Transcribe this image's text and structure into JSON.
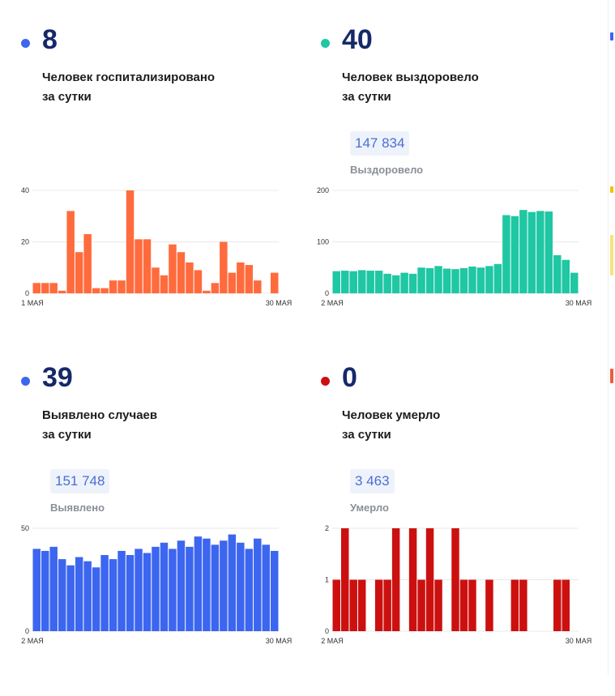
{
  "colors": {
    "orange": "#ff6b3d",
    "teal": "#1fc7a3",
    "blue": "#3c66f0",
    "red": "#cc1010",
    "blue_dot": "#3c66f0",
    "teal_dot": "#1fc7a3",
    "red_dot": "#cc1010"
  },
  "cards": {
    "hosp": {
      "value": "8",
      "label_line1": "Человек госпитализировано",
      "label_line2": "за сутки"
    },
    "recovered": {
      "value": "40",
      "label_line1": "Человек выздоровело",
      "label_line2": "за сутки",
      "total": "147 834",
      "total_label": "Выздоровело"
    },
    "cases": {
      "value": "39",
      "label_line1": "Выявлено случаев",
      "label_line2": "за сутки",
      "total": "151 748",
      "total_label": "Выявлено"
    },
    "deaths": {
      "value": "0",
      "label_line1": "Человек умерло",
      "label_line2": "за сутки",
      "total": "3 463",
      "total_label": "Умерло"
    }
  },
  "chart_data": [
    {
      "type": "bar",
      "id": "hosp",
      "x_start_label": "1 МАЯ",
      "x_end_label": "30 МАЯ",
      "yticks": [
        0,
        20,
        40
      ],
      "ylim": [
        0,
        40
      ],
      "values": [
        4,
        4,
        4,
        1,
        32,
        16,
        23,
        2,
        2,
        5,
        5,
        40,
        21,
        21,
        10,
        7,
        19,
        16,
        12,
        9,
        1,
        4,
        20,
        8,
        12,
        11,
        5,
        0,
        8
      ]
    },
    {
      "type": "bar",
      "id": "recovered",
      "x_start_label": "2 МАЯ",
      "x_end_label": "30 МАЯ",
      "yticks": [
        0,
        100,
        200
      ],
      "ylim": [
        0,
        200
      ],
      "values": [
        43,
        44,
        43,
        45,
        44,
        44,
        38,
        35,
        40,
        38,
        50,
        49,
        53,
        48,
        47,
        49,
        52,
        50,
        53,
        57,
        152,
        150,
        162,
        158,
        160,
        159,
        74,
        65,
        40
      ]
    },
    {
      "type": "bar",
      "id": "cases",
      "x_start_label": "2 МАЯ",
      "x_end_label": "30 МАЯ",
      "yticks": [
        0,
        50
      ],
      "ylim": [
        0,
        50
      ],
      "values": [
        40,
        39,
        41,
        35,
        32,
        36,
        34,
        31,
        37,
        35,
        39,
        37,
        40,
        38,
        41,
        43,
        40,
        44,
        41,
        46,
        45,
        42,
        44,
        47,
        43,
        40,
        45,
        42,
        39
      ]
    },
    {
      "type": "bar",
      "id": "deaths",
      "x_start_label": "2 МАЯ",
      "x_end_label": "30 МАЯ",
      "yticks": [
        0,
        1,
        2
      ],
      "ylim": [
        0,
        2
      ],
      "values": [
        1,
        2,
        1,
        1,
        0,
        1,
        1,
        2,
        0,
        2,
        1,
        2,
        1,
        0,
        2,
        1,
        1,
        0,
        1,
        0,
        0,
        1,
        1,
        0,
        0,
        0,
        1,
        1,
        0
      ]
    }
  ]
}
